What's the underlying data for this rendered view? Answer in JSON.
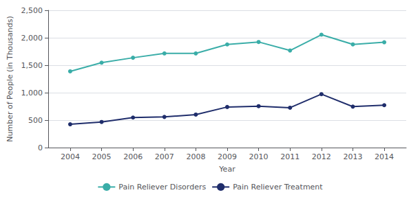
{
  "chart_data": {
    "type": "line",
    "x": [
      2004,
      2005,
      2006,
      2007,
      2008,
      2009,
      2010,
      2011,
      2012,
      2013,
      2014
    ],
    "series": [
      {
        "name": "Pain Reliever Disorders",
        "color": "#3AADA8",
        "values": [
          1388,
          1546,
          1636,
          1715,
          1715,
          1878,
          1923,
          1768,
          2056,
          1879,
          1918
        ]
      },
      {
        "name": "Pain Reliever Treatment",
        "color": "#1F2D6B",
        "values": [
          424,
          466,
          547,
          558,
          601,
          739,
          754,
          726,
          973,
          746,
          772
        ]
      }
    ],
    "xlabel": "Year",
    "ylabel": "Number of People (in Thousands)",
    "xlim": [
      2003.3,
      2014.7
    ],
    "xticks": [
      2004,
      2005,
      2006,
      2007,
      2008,
      2009,
      2010,
      2011,
      2012,
      2013,
      2014
    ],
    "ylim": [
      0,
      2500
    ],
    "yticks": [
      0,
      500,
      {
        "value": 1000,
        "label": "1,000"
      },
      {
        "value": 1500,
        "label": "1,500"
      },
      {
        "value": 2000,
        "label": "2,000"
      },
      {
        "value": 2500,
        "label": "2,500"
      }
    ],
    "grid": true,
    "legend": "bottom",
    "marker": "circle"
  }
}
